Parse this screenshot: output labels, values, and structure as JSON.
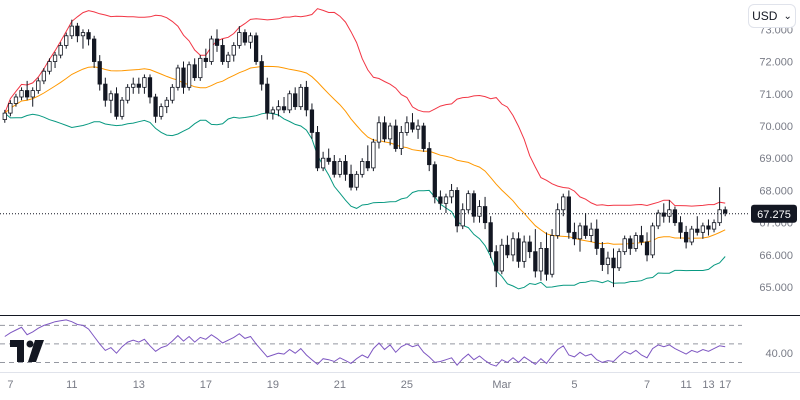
{
  "toolbar": {
    "currency": "USD",
    "chevron_icon": "chevron-down-icon"
  },
  "branding": {
    "logo_icon": "tradingview-logo-icon"
  },
  "colors": {
    "bullish": "#ffffff",
    "bearish": "#131722",
    "upper_band": "#f23645",
    "basis": "#ff9800",
    "lower_band": "#089981",
    "rsi_line": "#7e57c2",
    "grid_text": "#787b86",
    "last_price_badge": "#131722"
  },
  "chart_data": [
    {
      "type": "candlestick",
      "indicator": "Bollinger Bands",
      "y_ticks": [
        "73.000",
        "72.000",
        "71.000",
        "70.000",
        "69.000",
        "68.000",
        "67.000",
        "66.000",
        "65.000"
      ],
      "ylim": [
        64.6,
        73.6
      ],
      "last_price": "67.275",
      "x_ticks": [
        "7",
        "11",
        "13",
        "17",
        "19",
        "21",
        "25",
        "Mar",
        "5",
        "7",
        "11",
        "13",
        "17"
      ],
      "ohlc": [
        [
          70.2,
          70.5,
          70.1,
          70.4
        ],
        [
          70.4,
          70.8,
          70.3,
          70.7
        ],
        [
          70.7,
          71.0,
          70.6,
          70.9
        ],
        [
          70.9,
          71.2,
          70.8,
          71.1
        ],
        [
          71.1,
          71.4,
          70.8,
          70.9
        ],
        [
          70.9,
          71.2,
          70.6,
          71.1
        ],
        [
          71.1,
          71.5,
          71.0,
          71.4
        ],
        [
          71.4,
          71.8,
          71.3,
          71.7
        ],
        [
          71.7,
          72.1,
          71.6,
          72.0
        ],
        [
          72.0,
          72.3,
          71.8,
          72.2
        ],
        [
          72.2,
          72.6,
          72.1,
          72.5
        ],
        [
          72.5,
          72.9,
          72.4,
          72.8
        ],
        [
          72.8,
          73.3,
          72.7,
          73.1
        ],
        [
          73.1,
          73.2,
          72.6,
          72.8
        ],
        [
          72.8,
          73.0,
          72.4,
          72.9
        ],
        [
          72.9,
          73.0,
          72.5,
          72.7
        ],
        [
          72.7,
          72.8,
          71.8,
          72.0
        ],
        [
          72.0,
          72.2,
          71.1,
          71.3
        ],
        [
          71.3,
          71.5,
          70.6,
          70.8
        ],
        [
          70.8,
          71.1,
          70.4,
          71.0
        ],
        [
          71.0,
          71.2,
          70.2,
          70.3
        ],
        [
          70.3,
          70.9,
          70.2,
          70.8
        ],
        [
          70.8,
          71.3,
          70.7,
          71.2
        ],
        [
          71.2,
          71.5,
          71.0,
          71.3
        ],
        [
          71.3,
          71.5,
          71.0,
          71.2
        ],
        [
          71.2,
          71.6,
          71.0,
          71.5
        ],
        [
          71.5,
          71.6,
          70.7,
          70.9
        ],
        [
          70.9,
          71.0,
          70.1,
          70.3
        ],
        [
          70.3,
          70.7,
          70.2,
          70.6
        ],
        [
          70.6,
          70.9,
          70.4,
          70.8
        ],
        [
          70.8,
          71.3,
          70.7,
          71.2
        ],
        [
          71.2,
          71.9,
          71.1,
          71.8
        ],
        [
          71.8,
          72.0,
          71.0,
          71.2
        ],
        [
          71.2,
          72.0,
          71.1,
          71.9
        ],
        [
          71.9,
          72.1,
          71.4,
          71.5
        ],
        [
          71.5,
          72.2,
          71.4,
          72.1
        ],
        [
          72.1,
          72.4,
          71.8,
          72.0
        ],
        [
          72.0,
          72.8,
          71.9,
          72.7
        ],
        [
          72.7,
          73.0,
          72.3,
          72.5
        ],
        [
          72.5,
          72.7,
          71.9,
          72.0
        ],
        [
          72.0,
          72.3,
          71.8,
          72.2
        ],
        [
          72.2,
          72.6,
          72.0,
          72.5
        ],
        [
          72.5,
          73.1,
          72.4,
          72.9
        ],
        [
          72.9,
          73.0,
          72.5,
          72.6
        ],
        [
          72.6,
          72.9,
          72.4,
          72.8
        ],
        [
          72.8,
          72.9,
          71.9,
          72.0
        ],
        [
          72.0,
          72.2,
          71.1,
          71.3
        ],
        [
          71.3,
          71.5,
          70.2,
          70.4
        ],
        [
          70.4,
          70.6,
          70.2,
          70.5
        ],
        [
          70.5,
          70.8,
          70.3,
          70.6
        ],
        [
          70.6,
          70.9,
          70.4,
          70.5
        ],
        [
          70.5,
          71.1,
          70.4,
          71.0
        ],
        [
          71.0,
          71.2,
          70.5,
          70.6
        ],
        [
          70.6,
          71.3,
          70.5,
          71.2
        ],
        [
          71.2,
          71.4,
          70.3,
          70.5
        ],
        [
          70.5,
          70.7,
          69.6,
          69.8
        ],
        [
          69.8,
          70.0,
          68.6,
          68.7
        ],
        [
          68.7,
          69.2,
          68.6,
          69.0
        ],
        [
          69.0,
          69.3,
          68.8,
          68.9
        ],
        [
          68.9,
          69.1,
          68.4,
          68.5
        ],
        [
          68.5,
          69.0,
          68.4,
          68.9
        ],
        [
          68.9,
          69.1,
          68.3,
          68.5
        ],
        [
          68.5,
          68.8,
          68.0,
          68.1
        ],
        [
          68.1,
          68.6,
          68.0,
          68.5
        ],
        [
          68.5,
          69.0,
          68.4,
          68.9
        ],
        [
          68.9,
          69.4,
          68.6,
          68.7
        ],
        [
          68.7,
          69.6,
          68.6,
          69.5
        ],
        [
          69.5,
          70.3,
          69.3,
          70.1
        ],
        [
          70.1,
          70.3,
          69.5,
          69.6
        ],
        [
          69.6,
          70.1,
          69.4,
          70.0
        ],
        [
          70.0,
          70.2,
          69.2,
          69.3
        ],
        [
          69.3,
          70.0,
          69.1,
          69.8
        ],
        [
          69.8,
          70.3,
          69.7,
          70.1
        ],
        [
          70.1,
          70.4,
          69.8,
          69.9
        ],
        [
          69.9,
          70.2,
          69.6,
          70.0
        ],
        [
          70.0,
          70.1,
          69.2,
          69.3
        ],
        [
          69.3,
          69.5,
          68.6,
          68.8
        ],
        [
          68.8,
          68.9,
          67.6,
          67.8
        ],
        [
          67.8,
          68.0,
          67.4,
          67.6
        ],
        [
          67.6,
          67.9,
          67.3,
          67.8
        ],
        [
          67.8,
          68.2,
          67.6,
          68.0
        ],
        [
          68.0,
          68.1,
          66.7,
          66.9
        ],
        [
          66.9,
          67.6,
          66.8,
          67.4
        ],
        [
          67.4,
          68.0,
          67.3,
          67.9
        ],
        [
          67.9,
          68.0,
          67.0,
          67.2
        ],
        [
          67.2,
          67.7,
          67.0,
          67.5
        ],
        [
          67.5,
          67.8,
          66.8,
          67.0
        ],
        [
          67.0,
          67.2,
          65.9,
          66.1
        ],
        [
          66.1,
          66.3,
          65.0,
          65.5
        ],
        [
          65.5,
          66.5,
          65.4,
          66.3
        ],
        [
          66.3,
          66.6,
          65.9,
          66.0
        ],
        [
          66.0,
          66.7,
          65.8,
          66.5
        ],
        [
          66.5,
          66.7,
          65.6,
          65.8
        ],
        [
          65.8,
          66.6,
          65.6,
          66.4
        ],
        [
          66.4,
          66.6,
          65.9,
          66.1
        ],
        [
          66.1,
          66.8,
          65.3,
          65.5
        ],
        [
          65.5,
          66.4,
          65.2,
          66.2
        ],
        [
          66.2,
          66.7,
          65.2,
          65.4
        ],
        [
          65.4,
          66.8,
          65.3,
          66.6
        ],
        [
          66.6,
          67.6,
          66.5,
          67.4
        ],
        [
          67.4,
          67.9,
          67.2,
          67.8
        ],
        [
          67.8,
          68.0,
          66.5,
          66.7
        ],
        [
          66.7,
          67.0,
          66.3,
          66.5
        ],
        [
          66.5,
          67.0,
          66.1,
          66.9
        ],
        [
          66.9,
          67.3,
          66.5,
          66.6
        ],
        [
          66.6,
          67.0,
          66.4,
          66.8
        ],
        [
          66.8,
          67.1,
          66.0,
          66.2
        ],
        [
          66.2,
          66.4,
          65.5,
          65.7
        ],
        [
          65.7,
          66.1,
          65.4,
          65.9
        ],
        [
          65.9,
          66.2,
          65.0,
          65.6
        ],
        [
          65.6,
          66.2,
          65.5,
          66.1
        ],
        [
          66.1,
          66.6,
          66.0,
          66.5
        ],
        [
          66.5,
          66.6,
          66.0,
          66.2
        ],
        [
          66.2,
          66.7,
          66.1,
          66.6
        ],
        [
          66.6,
          66.9,
          66.3,
          66.4
        ],
        [
          66.4,
          66.7,
          65.8,
          66.0
        ],
        [
          66.0,
          67.0,
          65.9,
          66.9
        ],
        [
          66.9,
          67.4,
          66.8,
          67.3
        ],
        [
          67.3,
          67.6,
          67.0,
          67.2
        ],
        [
          67.2,
          67.7,
          67.0,
          67.4
        ],
        [
          67.4,
          67.5,
          66.9,
          67.0
        ],
        [
          67.0,
          67.2,
          66.5,
          66.7
        ],
        [
          66.7,
          66.9,
          66.2,
          66.4
        ],
        [
          66.4,
          66.9,
          66.3,
          66.8
        ],
        [
          66.8,
          67.2,
          66.6,
          66.7
        ],
        [
          66.7,
          67.0,
          66.5,
          66.9
        ],
        [
          66.9,
          67.1,
          66.6,
          66.8
        ],
        [
          66.8,
          67.1,
          66.7,
          67.0
        ],
        [
          67.0,
          68.1,
          66.9,
          67.4
        ],
        [
          67.4,
          67.5,
          67.2,
          67.3
        ]
      ]
    },
    {
      "type": "line",
      "indicator": "RSI",
      "y_ticks": [
        "40.00"
      ],
      "ylim": [
        24,
        78
      ],
      "levels": [
        70,
        50,
        30
      ],
      "values": [
        58,
        62,
        65,
        68,
        60,
        63,
        67,
        70,
        72,
        74,
        75,
        76,
        74,
        71,
        70,
        66,
        58,
        50,
        43,
        46,
        40,
        47,
        52,
        54,
        52,
        55,
        48,
        42,
        46,
        48,
        53,
        59,
        53,
        58,
        52,
        57,
        55,
        60,
        56,
        51,
        54,
        57,
        61,
        56,
        58,
        50,
        43,
        36,
        38,
        40,
        39,
        44,
        40,
        45,
        38,
        33,
        28,
        34,
        33,
        31,
        35,
        32,
        29,
        34,
        38,
        35,
        45,
        51,
        44,
        49,
        41,
        47,
        50,
        47,
        49,
        41,
        36,
        30,
        31,
        33,
        35,
        27,
        34,
        39,
        33,
        37,
        32,
        28,
        26,
        33,
        30,
        35,
        30,
        36,
        32,
        28,
        34,
        29,
        37,
        44,
        48,
        38,
        36,
        41,
        37,
        39,
        33,
        30,
        32,
        31,
        37,
        42,
        39,
        43,
        38,
        35,
        45,
        49,
        47,
        49,
        45,
        42,
        39,
        43,
        41,
        44,
        42,
        45,
        48,
        47
      ]
    }
  ]
}
